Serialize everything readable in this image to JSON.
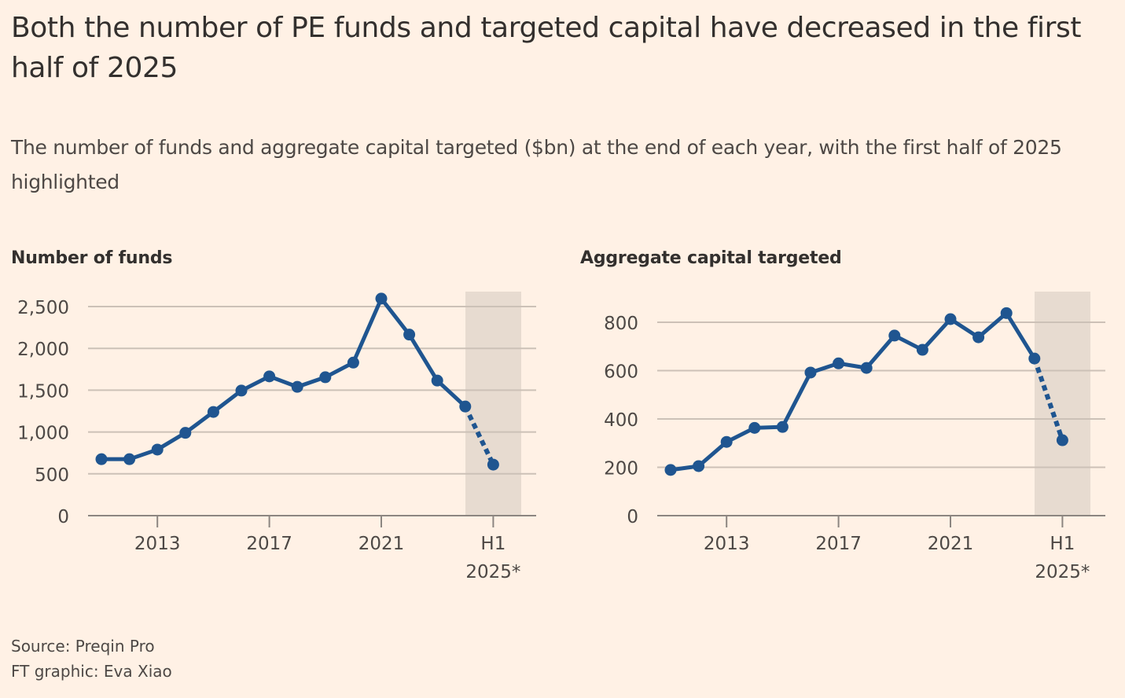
{
  "header": {
    "title": "Both the number of PE funds and targeted capital have decreased in the first half of 2025",
    "subtitle": "The number of funds and aggregate capital targeted ($bn) at the end of each year, with the first half of 2025 highlighted"
  },
  "footer": {
    "source": "Source: Preqin Pro",
    "credit": "FT graphic: Eva Xiao"
  },
  "colors": {
    "background": "#fff1e5",
    "line": "#1f5590",
    "highlight": "#e7dbd0",
    "grid": "#ccc1b7",
    "text": "#33302e"
  },
  "chart_data": [
    {
      "type": "line",
      "title": "Number of funds",
      "xlabel": "",
      "ylabel": "",
      "x": [
        "2011",
        "2012",
        "2013",
        "2014",
        "2015",
        "2016",
        "2017",
        "2018",
        "2019",
        "2020",
        "2021",
        "2022",
        "2023",
        "2024",
        "H1 2025*"
      ],
      "values": [
        675,
        675,
        790,
        990,
        1240,
        1495,
        1665,
        1540,
        1655,
        1830,
        2595,
        2165,
        1615,
        1305,
        610
      ],
      "projected_from_index": 13,
      "highlight_category": "H1 2025*",
      "ylim": [
        0,
        2600
      ],
      "yticks": [
        0,
        500,
        1000,
        1500,
        2000,
        2500
      ],
      "ytick_labels": [
        "0",
        "500",
        "1,000",
        "1,500",
        "2,000",
        "2,500"
      ],
      "xticks": [
        {
          "category": "2013",
          "label": [
            "2013"
          ]
        },
        {
          "category": "2017",
          "label": [
            "2017"
          ]
        },
        {
          "category": "2021",
          "label": [
            "2021"
          ]
        },
        {
          "category": "H1 2025*",
          "label": [
            "H1",
            "2025*"
          ]
        }
      ],
      "grid": true,
      "legend": "none"
    },
    {
      "type": "line",
      "title": "Aggregate capital targeted",
      "xlabel": "",
      "ylabel": "$bn",
      "x": [
        "2011",
        "2012",
        "2013",
        "2014",
        "2015",
        "2016",
        "2017",
        "2018",
        "2019",
        "2020",
        "2021",
        "2022",
        "2023",
        "2024",
        "H1 2025*"
      ],
      "values": [
        189,
        205,
        305,
        363,
        367,
        592,
        630,
        611,
        745,
        686,
        813,
        738,
        838,
        650,
        312
      ],
      "projected_from_index": 13,
      "highlight_category": "H1 2025*",
      "ylim": [
        0,
        860
      ],
      "yticks": [
        0,
        200,
        400,
        600,
        800
      ],
      "ytick_labels": [
        "0",
        "200",
        "400",
        "600",
        "800"
      ],
      "xticks": [
        {
          "category": "2013",
          "label": [
            "2013"
          ]
        },
        {
          "category": "2017",
          "label": [
            "2017"
          ]
        },
        {
          "category": "2021",
          "label": [
            "2021"
          ]
        },
        {
          "category": "H1 2025*",
          "label": [
            "H1",
            "2025*"
          ]
        }
      ],
      "grid": true,
      "legend": "none"
    }
  ]
}
